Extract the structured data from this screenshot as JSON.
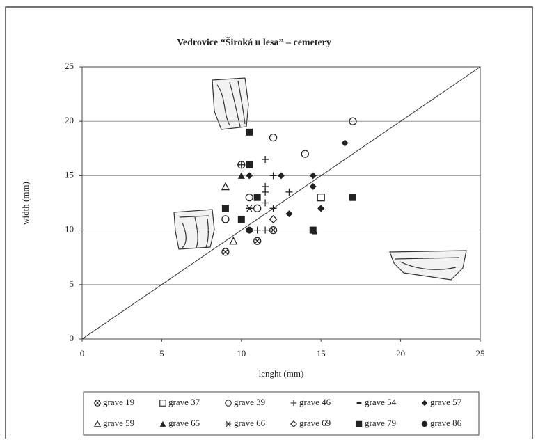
{
  "chart_data": {
    "type": "scatter",
    "title": "Vedrovice “Široká u lesa” – cemetery",
    "x_label": "lenght (mm)",
    "y_label": "width (mm)",
    "xlim": [
      0,
      25
    ],
    "ylim": [
      0,
      25
    ],
    "xticks": [
      0,
      5,
      10,
      15,
      20,
      25
    ],
    "yticks": [
      0,
      5,
      10,
      15,
      20,
      25
    ],
    "grid": true,
    "series": [
      {
        "name": "grave 19",
        "marker": "circle-x",
        "color": "#222",
        "x": [
          9,
          11,
          12
        ],
        "y": [
          8,
          9,
          10
        ]
      },
      {
        "name": "grave 37",
        "marker": "square-open",
        "color": "#222",
        "x": [
          15
        ],
        "y": [
          13
        ]
      },
      {
        "name": "grave 39",
        "marker": "circle-open",
        "color": "#222",
        "x": [
          9,
          10.5,
          11,
          12,
          14,
          17,
          10
        ],
        "y": [
          11,
          13,
          12,
          18.5,
          17,
          20,
          16
        ]
      },
      {
        "name": "grave 46",
        "marker": "plus",
        "color": "#222",
        "x": [
          10,
          11.5,
          12,
          11.5,
          11.5,
          13,
          11.5,
          12,
          11,
          11.5
        ],
        "y": [
          16,
          16.5,
          15,
          14,
          13.5,
          13.5,
          12.5,
          12,
          10,
          10
        ]
      },
      {
        "name": "grave 54",
        "marker": "dash",
        "color": "#222",
        "x": [
          14.6
        ],
        "y": [
          9.7
        ]
      },
      {
        "name": "grave 57",
        "marker": "diamond-filled",
        "color": "#222",
        "x": [
          16.5,
          14.5,
          14.5,
          12.5,
          10.5,
          13,
          15
        ],
        "y": [
          18,
          15,
          14,
          15,
          15,
          11.5,
          12
        ]
      },
      {
        "name": "grave 59",
        "marker": "triangle-open",
        "color": "#222",
        "x": [
          9,
          9.5
        ],
        "y": [
          14,
          9
        ]
      },
      {
        "name": "grave 65",
        "marker": "triangle-filled",
        "color": "#222",
        "x": [
          10
        ],
        "y": [
          15
        ]
      },
      {
        "name": "grave 66",
        "marker": "asterisk",
        "color": "#222",
        "x": [
          10.5
        ],
        "y": [
          12
        ]
      },
      {
        "name": "grave 69",
        "marker": "diamond-open",
        "color": "#222",
        "x": [
          12
        ],
        "y": [
          11
        ]
      },
      {
        "name": "grave 79",
        "marker": "square-filled",
        "color": "#222",
        "x": [
          10.5,
          10.5,
          11,
          9,
          10,
          14.5,
          17
        ],
        "y": [
          19,
          16,
          13,
          12,
          11,
          10,
          13
        ]
      },
      {
        "name": "grave 86",
        "marker": "circle-filled",
        "color": "#222",
        "x": [
          10.5
        ],
        "y": [
          10
        ]
      }
    ]
  }
}
